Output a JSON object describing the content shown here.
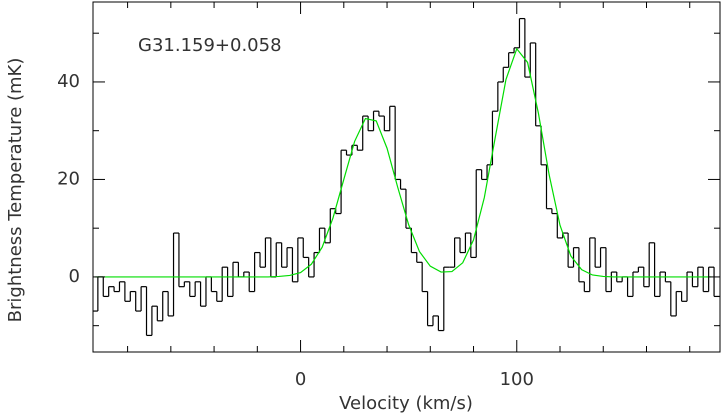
{
  "chart_data": {
    "type": "line",
    "xlabel": "Velocity (km/s)",
    "ylabel": "Brightness Temperature (mK)",
    "annotation": "G31.159+0.058",
    "xlim": [
      -96,
      194
    ],
    "ylim": [
      -15.4,
      56.4
    ],
    "xticks": [
      0,
      100
    ],
    "yticks": [
      0,
      20,
      40
    ],
    "xminorticks": [
      -80,
      -60,
      -40,
      -20,
      20,
      40,
      60,
      80,
      120,
      140,
      160,
      180
    ],
    "yminorticks": [
      -10,
      10,
      30,
      50
    ],
    "series": [
      {
        "color": "#000000",
        "step": true,
        "x": [
          -95,
          -92.5,
          -90,
          -87.5,
          -85,
          -82.5,
          -80,
          -77.5,
          -75,
          -72.5,
          -70,
          -67.5,
          -65,
          -62.5,
          -60,
          -57.5,
          -55,
          -52.5,
          -50,
          -47.5,
          -45,
          -42.5,
          -40,
          -37.5,
          -35,
          -32.5,
          -30,
          -27.5,
          -25,
          -22.5,
          -20,
          -17.5,
          -15,
          -12.5,
          -10,
          -7.5,
          -5,
          -2.5,
          0,
          2.5,
          5,
          7.5,
          10,
          12.5,
          15,
          17.5,
          20,
          22.5,
          25,
          27.5,
          30,
          32.5,
          35,
          37.5,
          40,
          42.5,
          45,
          47.5,
          50,
          52.5,
          55,
          57.5,
          60,
          62.5,
          65,
          67.5,
          70,
          72.5,
          75,
          77.5,
          80,
          82.5,
          85,
          87.5,
          90,
          92.5,
          95,
          97.5,
          100,
          102.5,
          105,
          107.5,
          110,
          112.5,
          115,
          117.5,
          120,
          122.5,
          125,
          127.5,
          130,
          132.5,
          135,
          137.5,
          140,
          142.5,
          145,
          147.5,
          150,
          152.5,
          155,
          157.5,
          160,
          162.5,
          165,
          167.5,
          170,
          172.5,
          175,
          177.5,
          180,
          182.5,
          185,
          187.5,
          190,
          192.5
        ],
        "values": [
          -7,
          0,
          -4,
          -2,
          -3,
          -1,
          -5,
          -3,
          -7,
          -2,
          -12,
          -6,
          -9,
          -3,
          -8,
          9,
          -2,
          -1,
          -4,
          -1,
          -6,
          0,
          -3,
          -5,
          2,
          -4,
          3,
          0,
          1,
          -3,
          5,
          2,
          8,
          0,
          7,
          2,
          6,
          -1,
          8,
          4,
          0,
          5,
          10,
          7,
          14,
          13,
          26,
          25,
          27,
          26,
          33,
          30,
          34,
          33,
          30,
          35,
          20,
          18,
          10,
          5,
          3,
          -3,
          -10,
          -8,
          -11,
          2,
          2,
          8,
          5,
          9,
          4,
          22,
          20,
          23,
          34,
          40,
          43,
          46,
          47,
          53,
          41,
          48,
          31,
          23,
          14,
          13,
          8,
          9,
          2,
          6,
          -1,
          -3,
          8,
          2,
          6,
          -3,
          1,
          -1,
          0,
          -4,
          1,
          2,
          -2,
          7,
          -4,
          1,
          -1,
          -8,
          -3,
          -5,
          1,
          -2,
          2,
          -3,
          2,
          -4
        ]
      },
      {
        "color": "#00dd00",
        "step": false,
        "x": [
          -95,
          -90,
          -85,
          -80,
          -75,
          -70,
          -65,
          -60,
          -55,
          -50,
          -45,
          -40,
          -35,
          -30,
          -25,
          -20,
          -15,
          -10,
          -5,
          0,
          5,
          10,
          15,
          20,
          25,
          30,
          35,
          40,
          45,
          50,
          55,
          60,
          65,
          70,
          75,
          80,
          85,
          90,
          95,
          100,
          105,
          110,
          115,
          120,
          125,
          130,
          135,
          140,
          145,
          150,
          155,
          160,
          165,
          170,
          175,
          180,
          185,
          190
        ],
        "values": [
          0,
          0,
          0,
          0,
          0,
          0,
          0,
          0,
          0,
          0,
          0,
          0,
          0,
          0,
          0,
          0,
          0,
          0.1,
          0.3,
          0.9,
          2.6,
          6.1,
          12.1,
          20.0,
          27.8,
          32.5,
          32.0,
          26.4,
          18.3,
          10.7,
          5.2,
          2.2,
          1.0,
          1.1,
          2.9,
          7.6,
          16.3,
          28.5,
          40.5,
          46.8,
          44.0,
          33.6,
          20.9,
          10.6,
          4.3,
          1.5,
          0.4,
          0.1,
          0,
          0,
          0,
          0,
          0,
          0,
          0,
          0,
          0,
          0
        ]
      }
    ]
  }
}
